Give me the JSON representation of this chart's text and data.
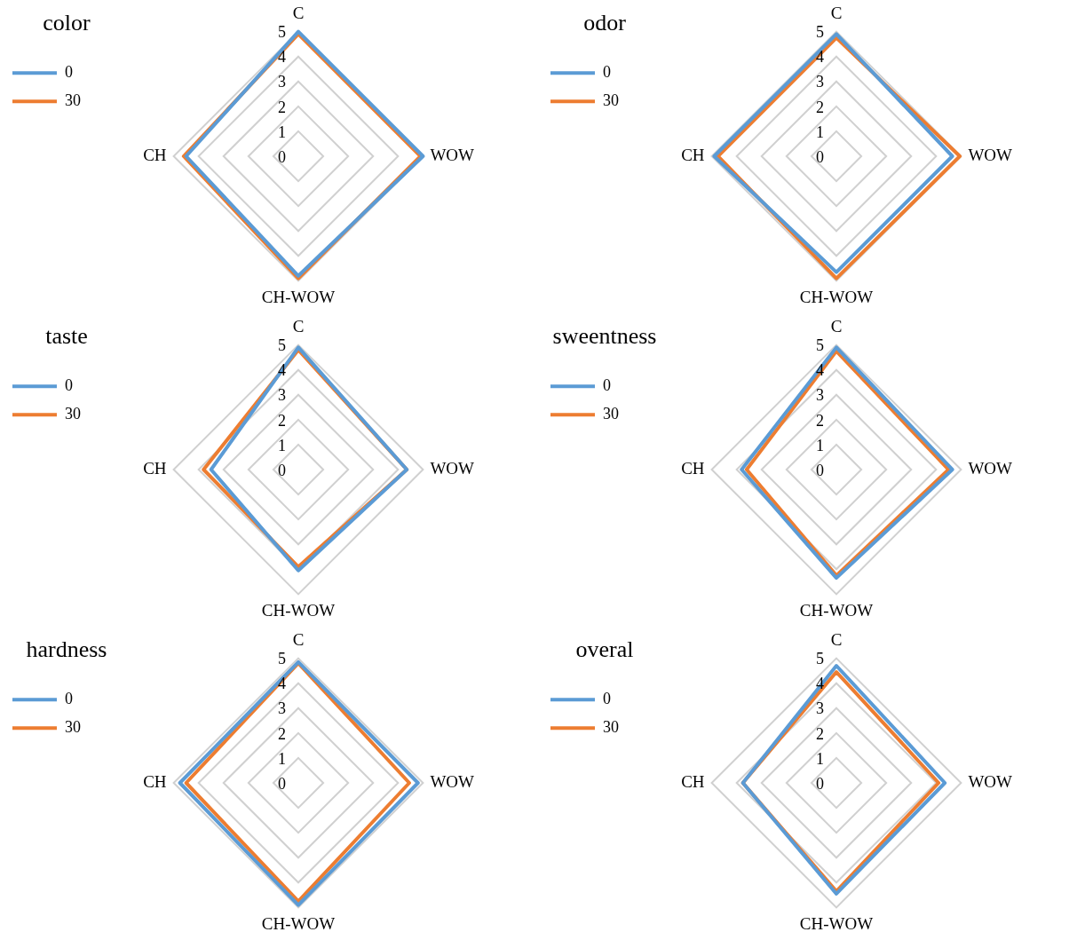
{
  "chart_data": [
    {
      "type": "radar",
      "title": "color",
      "categories": [
        "C",
        "WOW",
        "CH-WOW",
        "CH"
      ],
      "ylim": [
        0,
        5
      ],
      "yticks": [
        0,
        1,
        2,
        3,
        4,
        5
      ],
      "grid": true,
      "legend": "top left",
      "marker": "none",
      "series": [
        {
          "name": "0",
          "color": "#5b9bd5",
          "values": [
            5.0,
            5.0,
            4.8,
            4.5
          ]
        },
        {
          "name": "30",
          "color": "#ed7d31",
          "values": [
            4.9,
            4.9,
            4.9,
            4.6
          ]
        }
      ]
    },
    {
      "type": "radar",
      "title": "odor",
      "categories": [
        "C",
        "WOW",
        "CH-WOW",
        "CH"
      ],
      "ylim": [
        0,
        5
      ],
      "yticks": [
        0,
        1,
        2,
        3,
        4,
        5
      ],
      "grid": true,
      "legend": "top left",
      "marker": "none",
      "series": [
        {
          "name": "0",
          "color": "#5b9bd5",
          "values": [
            4.9,
            4.65,
            4.65,
            4.9
          ]
        },
        {
          "name": "30",
          "color": "#ed7d31",
          "values": [
            4.75,
            4.95,
            4.9,
            4.75
          ]
        }
      ]
    },
    {
      "type": "radar",
      "title": "taste",
      "categories": [
        "C",
        "WOW",
        "CH-WOW",
        "CH"
      ],
      "ylim": [
        0,
        5
      ],
      "yticks": [
        0,
        1,
        2,
        3,
        4,
        5
      ],
      "grid": true,
      "legend": "top left",
      "marker": "none",
      "series": [
        {
          "name": "0",
          "color": "#5b9bd5",
          "values": [
            4.9,
            4.35,
            4.05,
            3.5
          ]
        },
        {
          "name": "30",
          "color": "#ed7d31",
          "values": [
            4.8,
            4.35,
            3.9,
            3.8
          ]
        }
      ]
    },
    {
      "type": "radar",
      "title": "sweentness",
      "categories": [
        "C",
        "WOW",
        "CH-WOW",
        "CH"
      ],
      "ylim": [
        0,
        5
      ],
      "yticks": [
        0,
        1,
        2,
        3,
        4,
        5
      ],
      "grid": true,
      "legend": "top left",
      "marker": "none",
      "series": [
        {
          "name": "0",
          "color": "#5b9bd5",
          "values": [
            4.9,
            4.65,
            4.35,
            3.8
          ]
        },
        {
          "name": "30",
          "color": "#ed7d31",
          "values": [
            4.75,
            4.5,
            4.25,
            3.6
          ]
        }
      ]
    },
    {
      "type": "radar",
      "title": "hardness",
      "categories": [
        "C",
        "WOW",
        "CH-WOW",
        "CH"
      ],
      "ylim": [
        0,
        5
      ],
      "yticks": [
        0,
        1,
        2,
        3,
        4,
        5
      ],
      "grid": true,
      "legend": "top left",
      "marker": "none",
      "series": [
        {
          "name": "0",
          "color": "#5b9bd5",
          "values": [
            4.85,
            4.8,
            4.9,
            4.75
          ]
        },
        {
          "name": "30",
          "color": "#ed7d31",
          "values": [
            4.8,
            4.45,
            4.75,
            4.5
          ]
        }
      ]
    },
    {
      "type": "radar",
      "title": "overal",
      "categories": [
        "C",
        "WOW",
        "CH-WOW",
        "CH"
      ],
      "ylim": [
        0,
        5
      ],
      "yticks": [
        0,
        1,
        2,
        3,
        4,
        5
      ],
      "grid": true,
      "legend": "top left",
      "marker": "none",
      "series": [
        {
          "name": "0",
          "color": "#5b9bd5",
          "values": [
            4.7,
            4.35,
            4.45,
            3.75
          ]
        },
        {
          "name": "30",
          "color": "#ed7d31",
          "values": [
            4.45,
            4.1,
            4.35,
            3.75
          ]
        }
      ]
    }
  ]
}
